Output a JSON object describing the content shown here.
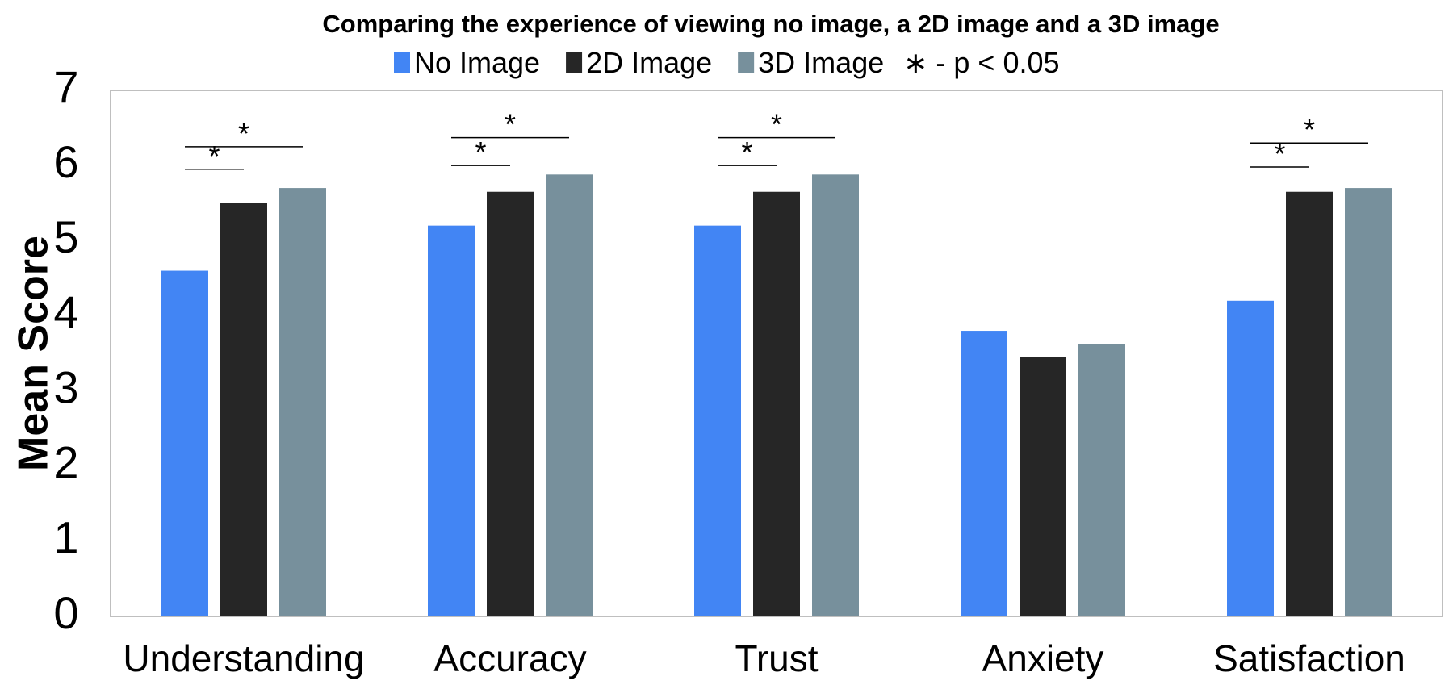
{
  "chart_data": {
    "type": "bar",
    "title": "Comparing the experience of viewing no image, a 2D image and a 3D image",
    "xlabel": "",
    "ylabel": "Mean Score",
    "ylim": [
      0,
      7
    ],
    "yticks": [
      "0",
      "1",
      "2",
      "3",
      "4",
      "5",
      "6",
      "7"
    ],
    "grid": false,
    "legend_position": "top",
    "categories": [
      "Understanding",
      "Accuracy",
      "Trust",
      "Anxiety",
      "Satisfaction"
    ],
    "series": [
      {
        "name": "No Image",
        "color": "#4285f4",
        "values": [
          4.6,
          5.2,
          5.2,
          3.8,
          4.2
        ]
      },
      {
        "name": "2D Image",
        "color": "#262626",
        "values": [
          5.5,
          5.65,
          5.65,
          3.45,
          5.65
        ]
      },
      {
        "name": "3D Image",
        "color": "#77909c",
        "values": [
          5.7,
          5.88,
          5.88,
          3.62,
          5.7
        ]
      }
    ],
    "significance_note": "∗ - p < 0.05",
    "significance": [
      {
        "category": "Understanding",
        "from": "No Image",
        "to": "2D Image",
        "mark": "*",
        "level": 5.95
      },
      {
        "category": "Understanding",
        "from": "No Image",
        "to": "3D Image",
        "mark": "*",
        "level": 6.25
      },
      {
        "category": "Accuracy",
        "from": "No Image",
        "to": "2D Image",
        "mark": "*",
        "level": 6.0
      },
      {
        "category": "Accuracy",
        "from": "No Image",
        "to": "3D Image",
        "mark": "*",
        "level": 6.37
      },
      {
        "category": "Trust",
        "from": "No Image",
        "to": "2D Image",
        "mark": "*",
        "level": 6.0
      },
      {
        "category": "Trust",
        "from": "No Image",
        "to": "3D Image",
        "mark": "*",
        "level": 6.37
      },
      {
        "category": "Satisfaction",
        "from": "No Image",
        "to": "2D Image",
        "mark": "*",
        "level": 5.98
      },
      {
        "category": "Satisfaction",
        "from": "No Image",
        "to": "3D Image",
        "mark": "*",
        "level": 6.3
      }
    ]
  }
}
